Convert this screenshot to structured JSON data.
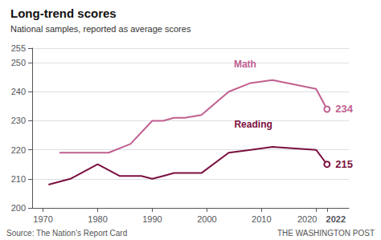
{
  "chart_data": {
    "type": "line",
    "title": "Long-trend scores",
    "subtitle": "National samples, reported as average scores",
    "source": "Source: The Nation’s Report Card",
    "credit": "THE WASHINGTON POST",
    "series": [
      {
        "name": "Math",
        "color": "#c06090",
        "x": [
          1973,
          1978,
          1982,
          1986,
          1990,
          1992,
          1994,
          1996,
          1999,
          2004,
          2008,
          2012,
          2020,
          2022
        ],
        "values": [
          219,
          219,
          219,
          222,
          230,
          230,
          231,
          231,
          232,
          240,
          243,
          244,
          241,
          234
        ]
      },
      {
        "name": "Reading",
        "color": "#7b1040",
        "x": [
          1971,
          1975,
          1980,
          1984,
          1988,
          1990,
          1992,
          1994,
          1996,
          1999,
          2004,
          2008,
          2012,
          2020,
          2022
        ],
        "values": [
          208,
          210,
          215,
          211,
          211,
          210,
          211,
          212,
          212,
          212,
          219,
          220,
          221,
          220,
          215
        ]
      }
    ],
    "annotations": [
      {
        "text": "Math",
        "x": 2007,
        "y": 247,
        "series": "Math"
      },
      {
        "text": "Reading",
        "x": 2008.5,
        "y": 226.5,
        "series": "Reading"
      },
      {
        "text": "234",
        "x": 2022,
        "y": 234,
        "series": "Math"
      },
      {
        "text": "215",
        "x": 2022,
        "y": 215,
        "series": "Reading"
      }
    ],
    "xlim": [
      1968,
      2026
    ],
    "xticks": [
      1970,
      1980,
      1990,
      2000,
      2010,
      2020,
      2022
    ],
    "ylim": [
      200,
      255
    ],
    "yticks": [
      200,
      210,
      220,
      230,
      240,
      250
    ],
    "grid": true
  }
}
